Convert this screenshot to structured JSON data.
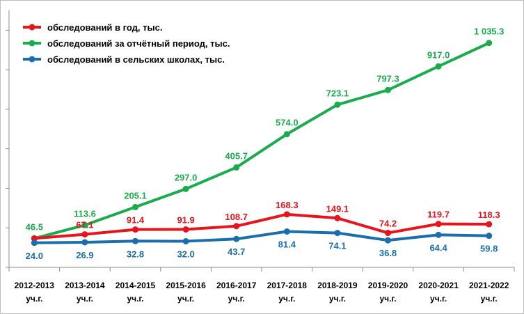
{
  "chart_data": {
    "type": "line",
    "title": "",
    "xlabel": "",
    "ylabel": "",
    "ylim": [
      -100,
      1200
    ],
    "categories": [
      [
        "2012-2013",
        "уч.г."
      ],
      [
        "2013-2014",
        "уч.г."
      ],
      [
        "2014-2015",
        "уч.г."
      ],
      [
        "2015-2016",
        "уч.г."
      ],
      [
        "2016-2017",
        "уч.г."
      ],
      [
        "2017-2018",
        "уч.г."
      ],
      [
        "2018-2019",
        "уч.г."
      ],
      [
        "2019-2020",
        "уч.г."
      ],
      [
        "2020-2021",
        "уч.г."
      ],
      [
        "2021-2022",
        "уч.г."
      ]
    ],
    "legend_position": "top-left",
    "grid": false,
    "series": [
      {
        "name": "обследований в год, тыс.",
        "color": "#e8141c",
        "values": [
          46.5,
          67.1,
          91.4,
          91.9,
          108.7,
          168.3,
          149.1,
          74.2,
          119.7,
          118.3
        ],
        "labels": [
          "",
          "67.1",
          "91.4",
          "91.9",
          "108.7",
          "168.3",
          "149.1",
          "74.2",
          "119.7",
          "118.3"
        ]
      },
      {
        "name": "обследований за отчётный период, тыс.",
        "color": "#1aac4c",
        "values": [
          46.5,
          113.6,
          205.1,
          297.0,
          405.7,
          574.0,
          723.1,
          797.3,
          917.0,
          1035.3
        ],
        "labels": [
          "46.5",
          "113.6",
          "205.1",
          "297.0",
          "405.7",
          "574.0",
          "723.1",
          "797.3",
          "917.0",
          "1 035.3"
        ]
      },
      {
        "name": "обследований в сельских школах, тыс.",
        "color": "#1a6ead",
        "values": [
          24.0,
          26.9,
          32.8,
          32.0,
          43.7,
          81.4,
          74.1,
          36.8,
          64.4,
          59.8
        ],
        "labels": [
          "24.0",
          "26.9",
          "32.8",
          "32.0",
          "43.7",
          "81.4",
          "74.1",
          "36.8",
          "64.4",
          "59.8"
        ]
      }
    ]
  }
}
